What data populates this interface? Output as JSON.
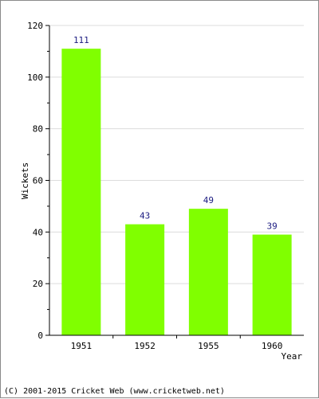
{
  "chart_data": {
    "type": "bar",
    "categories": [
      "1951",
      "1952",
      "1955",
      "1960"
    ],
    "values": [
      111,
      43,
      49,
      39
    ],
    "data_labels": [
      "111",
      "43",
      "49",
      "39"
    ],
    "xlabel": "Year",
    "ylabel": "Wickets",
    "ylim": [
      0,
      120
    ],
    "yticks": [
      0,
      20,
      40,
      60,
      80,
      100,
      120
    ],
    "bar_color": "#80ff00",
    "label_color": "#1a1a80",
    "grid": true
  },
  "footer": {
    "copyright": "(C) 2001-2015 Cricket Web (www.cricketweb.net)"
  }
}
